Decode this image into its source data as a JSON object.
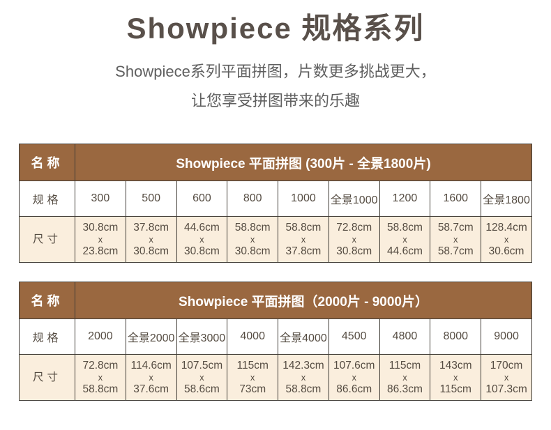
{
  "page": {
    "title": "Showpiece 规格系列",
    "subtitle_line1": "Showpiece系列平面拼图，片数更多挑战更大，",
    "subtitle_line2": "让您享受拼图带来的乐趣"
  },
  "labels": {
    "name": "名称",
    "spec": "规格",
    "size": "尺寸",
    "x": "x"
  },
  "colors": {
    "header_brown": "#9a6840",
    "size_row_cream": "#faeedd",
    "border": "#403c36",
    "cell_text": "#554c42",
    "title_text": "#59504a",
    "header_text": "#ffffff"
  },
  "tables": [
    {
      "title": "Showpiece 平面拼图 (300片 - 全景1800片)",
      "specs": [
        "300",
        "500",
        "600",
        "800",
        "1000",
        "全景1000",
        "1200",
        "1600",
        "全景1800"
      ],
      "sizes": [
        {
          "w": "30.8cm",
          "h": "23.8cm"
        },
        {
          "w": "37.8cm",
          "h": "30.8cm"
        },
        {
          "w": "44.6cm",
          "h": "30.8cm"
        },
        {
          "w": "58.8cm",
          "h": "30.8cm"
        },
        {
          "w": "58.8cm",
          "h": "37.8cm"
        },
        {
          "w": "72.8cm",
          "h": "30.8cm"
        },
        {
          "w": "58.8cm",
          "h": "44.6cm"
        },
        {
          "w": "58.7cm",
          "h": "58.7cm"
        },
        {
          "w": "128.4cm",
          "h": "30.6cm"
        }
      ]
    },
    {
      "title": "Showpiece 平面拼图（2000片 - 9000片）",
      "specs": [
        "2000",
        "全景2000",
        "全景3000",
        "4000",
        "全景4000",
        "4500",
        "4800",
        "8000",
        "9000"
      ],
      "sizes": [
        {
          "w": "72.8cm",
          "h": "58.8cm"
        },
        {
          "w": "114.6cm",
          "h": "37.6cm"
        },
        {
          "w": "107.5cm",
          "h": "58.6cm"
        },
        {
          "w": "115cm",
          "h": "73cm"
        },
        {
          "w": "142.3cm",
          "h": "58.8cm"
        },
        {
          "w": "107.6cm",
          "h": "86.6cm"
        },
        {
          "w": "115cm",
          "h": "86.3cm"
        },
        {
          "w": "143cm",
          "h": "115cm"
        },
        {
          "w": "170cm",
          "h": "107.3cm"
        }
      ]
    }
  ]
}
